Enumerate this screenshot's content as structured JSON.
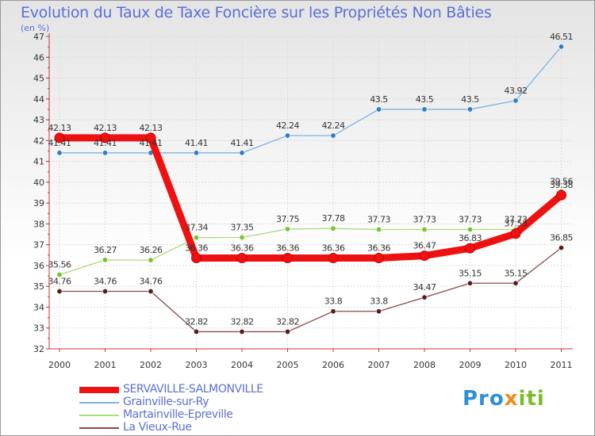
{
  "title": "Evolution du Taux de Taxe Foncière sur les Propriétés Non Bâties",
  "subtitle": "(en %)",
  "logo": {
    "part1": "Pro",
    "part2": "x",
    "part3": "iti"
  },
  "chart_data": {
    "type": "line",
    "title": "Evolution du Taux de Taxe Foncière sur les Propriétés Non Bâties",
    "ylabel": "(en %)",
    "xlabel": "",
    "x": [
      "2000",
      "2001",
      "2002",
      "2003",
      "2004",
      "2005",
      "2006",
      "2007",
      "2008",
      "2009",
      "2010",
      "2011"
    ],
    "ylim": [
      32,
      47
    ],
    "yticks": [
      32,
      33,
      34,
      35,
      36,
      37,
      38,
      39,
      40,
      41,
      42,
      43,
      44,
      45,
      46,
      47
    ],
    "grid": true,
    "legend_position": "bottom-left",
    "series": [
      {
        "name": "SERVAVILLE-SALMONVILLE",
        "color": "#ee1111",
        "marker_color": "#ee1111",
        "width": "thick",
        "values": [
          42.13,
          42.13,
          42.13,
          36.36,
          36.36,
          36.36,
          36.36,
          36.36,
          36.47,
          36.83,
          37.53,
          39.38
        ],
        "labels": [
          "42.13",
          "42.13",
          "42.13",
          "36.36",
          "36.36",
          "36.36",
          "36.36",
          "36.36",
          "36.47",
          "36.83",
          "37.53",
          "39.38"
        ]
      },
      {
        "name": "Grainville-sur-Ry",
        "color": "#7fb2e0",
        "marker_color": "#2f7fc4",
        "width": "thin",
        "values": [
          41.41,
          41.41,
          41.41,
          41.41,
          41.41,
          42.24,
          42.24,
          43.5,
          43.5,
          43.5,
          43.92,
          46.51
        ],
        "labels": [
          "41.41",
          "41.41",
          "41.41",
          "41.41",
          "41.41",
          "42.24",
          "42.24",
          "43.5",
          "43.5",
          "43.5",
          "43.92",
          "46.51"
        ]
      },
      {
        "name": "Martainville-Epreville",
        "color": "#a9de7a",
        "marker_color": "#74c42c",
        "width": "thin",
        "values": [
          35.56,
          36.27,
          36.26,
          37.34,
          37.35,
          37.75,
          37.78,
          37.73,
          37.73,
          37.73,
          37.73,
          39.56
        ],
        "labels": [
          "35.56",
          "36.27",
          "36.26",
          "37.34",
          "37.35",
          "37.75",
          "37.78",
          "37.73",
          "37.73",
          "37.73",
          "37.73",
          "39.56"
        ]
      },
      {
        "name": "La Vieux-Rue",
        "color": "#8b4a4a",
        "marker_color": "#5a1a1a",
        "width": "thin",
        "values": [
          34.76,
          34.76,
          34.76,
          32.82,
          32.82,
          32.82,
          33.8,
          33.8,
          34.47,
          35.15,
          35.15,
          36.85
        ],
        "labels": [
          "34.76",
          "34.76",
          "34.76",
          "32.82",
          "32.82",
          "32.82",
          "33.8",
          "33.8",
          "34.47",
          "35.15",
          "35.15",
          "36.85"
        ]
      }
    ]
  }
}
